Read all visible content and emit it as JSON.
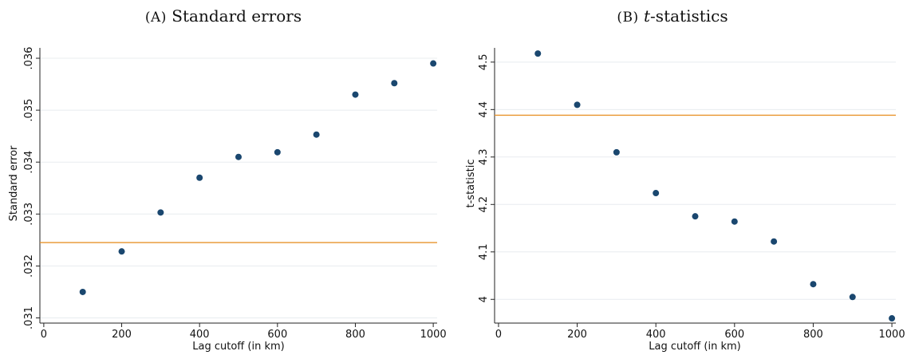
{
  "colors": {
    "marker": "#1a476f",
    "refline": "#e8932b",
    "grid": "#e8ecef"
  },
  "chart_data": [
    {
      "type": "scatter",
      "title_prefix": "(A)",
      "title": "Standard errors",
      "xlabel": "Lag cutoff (in km)",
      "ylabel": "Standard error",
      "xlim": [
        -10,
        1010
      ],
      "ylim": [
        0.0309,
        0.0362
      ],
      "xticks": [
        0,
        200,
        400,
        600,
        800,
        1000
      ],
      "xtick_labels": [
        "0",
        "200",
        "400",
        "600",
        "800",
        "1000"
      ],
      "yticks": [
        0.031,
        0.032,
        0.033,
        0.034,
        0.035,
        0.036
      ],
      "ytick_labels": [
        ".031",
        ".032",
        ".033",
        ".034",
        ".035",
        ".036"
      ],
      "grid": true,
      "x": [
        100,
        200,
        300,
        400,
        500,
        600,
        700,
        800,
        900,
        1000
      ],
      "y": [
        0.0315,
        0.03228,
        0.03303,
        0.0337,
        0.0341,
        0.03419,
        0.03453,
        0.0353,
        0.03552,
        0.0359
      ],
      "reference_line": 0.03245
    },
    {
      "type": "scatter",
      "title_prefix": "(B)",
      "title_italic": "t",
      "title": "-statistics",
      "xlabel": "Lag cutoff (in km)",
      "ylabel": "t-statistic",
      "xlim": [
        -10,
        1010
      ],
      "ylim": [
        3.95,
        4.53
      ],
      "xticks": [
        0,
        200,
        400,
        600,
        800,
        1000
      ],
      "xtick_labels": [
        "0",
        "200",
        "400",
        "600",
        "800",
        "1000"
      ],
      "yticks": [
        4.0,
        4.1,
        4.2,
        4.3,
        4.4,
        4.5
      ],
      "ytick_labels": [
        "4",
        "4.1",
        "4.2",
        "4.3",
        "4.4",
        "4.5"
      ],
      "grid": true,
      "x": [
        100,
        200,
        300,
        400,
        500,
        600,
        700,
        800,
        900,
        1000
      ],
      "y": [
        4.518,
        4.41,
        4.31,
        4.224,
        4.175,
        4.164,
        4.122,
        4.032,
        4.005,
        3.96
      ],
      "reference_line": 4.388
    }
  ]
}
